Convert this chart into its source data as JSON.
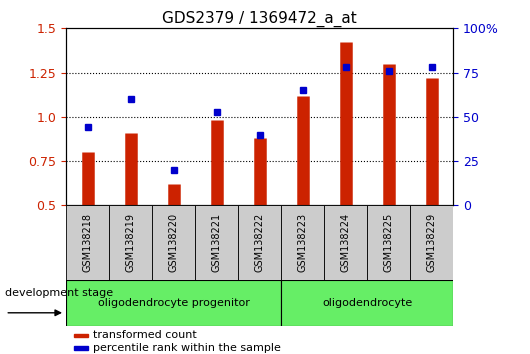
{
  "title": "GDS2379 / 1369472_a_at",
  "samples": [
    "GSM138218",
    "GSM138219",
    "GSM138220",
    "GSM138221",
    "GSM138222",
    "GSM138223",
    "GSM138224",
    "GSM138225",
    "GSM138229"
  ],
  "transformed_count": [
    0.8,
    0.91,
    0.62,
    0.98,
    0.88,
    1.12,
    1.42,
    1.3,
    1.22
  ],
  "percentile_rank": [
    44,
    60,
    20,
    53,
    40,
    65,
    78,
    76,
    78
  ],
  "group_configs": [
    {
      "start": 0,
      "end": 4,
      "label": "oligodendrocyte progenitor"
    },
    {
      "start": 5,
      "end": 8,
      "label": "oligodendrocyte"
    }
  ],
  "ylim_left": [
    0.5,
    1.5
  ],
  "ylim_right": [
    0,
    100
  ],
  "yticks_left": [
    0.5,
    0.75,
    1.0,
    1.25,
    1.5
  ],
  "yticks_right": [
    0,
    25,
    50,
    75,
    100
  ],
  "bar_color": "#CC2200",
  "dot_color": "#0000CC",
  "bar_linewidth": 9,
  "dot_size": 5,
  "legend_labels": [
    "transformed count",
    "percentile rank within the sample"
  ],
  "dev_stage_label": "development stage",
  "tick_area_color": "#cccccc",
  "group_box_color": "#66EE66",
  "title_fontsize": 11,
  "axis_fontsize": 9,
  "sample_fontsize": 7,
  "legend_fontsize": 8,
  "dev_fontsize": 8
}
